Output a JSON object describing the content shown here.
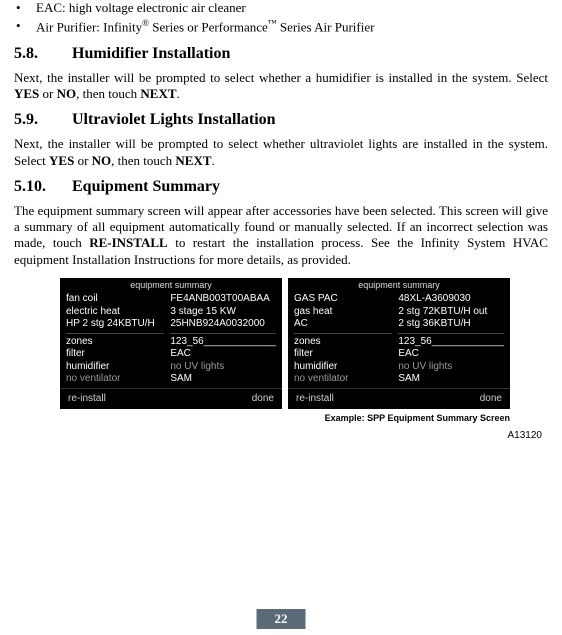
{
  "bullets": [
    {
      "text_prefix": "EAC: high voltage electronic air cleaner",
      "sup": "",
      "text_suffix": ""
    },
    {
      "text_prefix": "Air Purifier: Infinity",
      "sup": "®",
      "mid": " Series or Performance",
      "sup2": "™",
      "text_suffix": " Series Air Purifier"
    }
  ],
  "sec58": {
    "num": "5.8.",
    "title": "Humidifier Installation",
    "para_a": "Next, the installer will be prompted to select whether a humidifier is installed in the system. Select ",
    "yes": "YES",
    "or": " or ",
    "no": "NO",
    "then": ", then touch ",
    "next": "NEXT",
    "period": "."
  },
  "sec59": {
    "num": "5.9.",
    "title": "Ultraviolet Lights Installation",
    "para_a": "Next, the installer will be prompted to select whether ultraviolet lights are installed in the system. Select ",
    "yes": "YES",
    "or": " or ",
    "no": "NO",
    "then": ", then touch ",
    "next": "NEXT",
    "period": "."
  },
  "sec510": {
    "num": "5.10.",
    "title": "Equipment Summary",
    "para_a": "The equipment summary screen will appear after accessories have been selected. This screen will give a summary of all equipment automatically found or manually selected. If an incorrect selection was made, touch ",
    "reinstall": "RE-INSTALL",
    "para_b": " to restart the installation process. See the Infinity System HVAC equipment Installation Instructions for more details, as provided."
  },
  "shot_common": {
    "title": "equipment summary",
    "reinstall": "re-install",
    "done": "done"
  },
  "shot1": {
    "left": [
      "fan coil",
      "electric heat",
      "HP 2 stg 24KBTU/H"
    ],
    "right": [
      "FE4ANB003T00ABAA",
      "3 stage 15 KW",
      "25HNB924A0032000"
    ],
    "left2": [
      "zones",
      "filter",
      "humidifier"
    ],
    "left2_dim": "no ventilator",
    "right2": [
      "123_56_____________",
      "EAC"
    ],
    "right2_dim": "no UV lights",
    "right2_last": "SAM"
  },
  "shot2": {
    "left": [
      "GAS PAC",
      "gas heat",
      "AC"
    ],
    "right": [
      "48XL-A3609030",
      "2 stg 72KBTU/H out",
      "2 stg 36KBTU/H"
    ],
    "left2": [
      "zones",
      "filter",
      "humidifier"
    ],
    "left2_dim": "no ventilator",
    "right2": [
      "123_56_____________",
      "EAC"
    ],
    "right2_dim": "no UV lights",
    "right2_last": "SAM"
  },
  "caption": "Example: SPP Equipment Summary Screen",
  "figcode": "A13120",
  "pagenum": "22"
}
